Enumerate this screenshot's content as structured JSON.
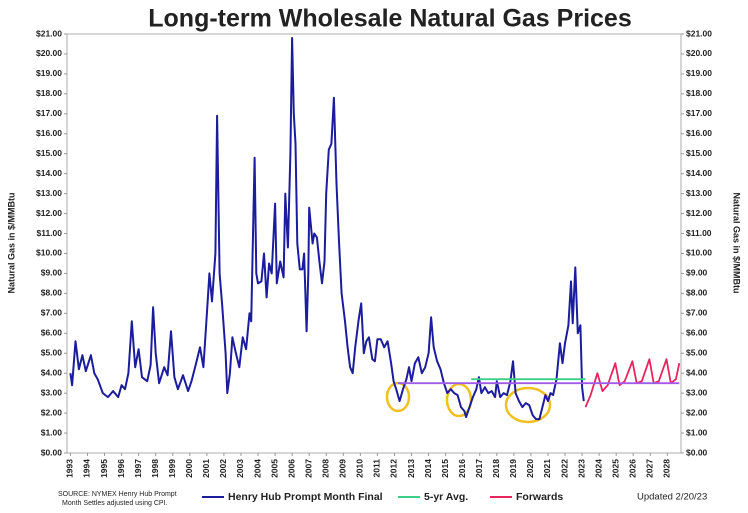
{
  "chart_data": {
    "type": "line",
    "title": "Long-term Wholesale Natural Gas Prices",
    "y_label": "Natural Gas in $/MMBtu",
    "y2_label": "Natural Gas in $/MMBtu",
    "source": [
      "SOURCE: NYMEX Henry Hub Prompt",
      "Month Settles adjusted using CPI."
    ],
    "updated": "Updated 2/20/23",
    "xlim": [
      1992.8,
      2028.8
    ],
    "xticks": [
      1993,
      1994,
      1995,
      1996,
      1997,
      1998,
      1999,
      2000,
      2001,
      2002,
      2003,
      2004,
      2005,
      2006,
      2007,
      2008,
      2009,
      2010,
      2011,
      2012,
      2013,
      2014,
      2015,
      2016,
      2017,
      2018,
      2019,
      2020,
      2021,
      2022,
      2023,
      2024,
      2025,
      2026,
      2027,
      2028
    ],
    "ylim": [
      0,
      21
    ],
    "yticks": [
      {
        "value": 0,
        "label": "$0.00"
      },
      {
        "value": 1,
        "label": "$1.00"
      },
      {
        "value": 2,
        "label": "$2.00"
      },
      {
        "value": 3,
        "label": "$3.00"
      },
      {
        "value": 4,
        "label": "$4.00"
      },
      {
        "value": 5,
        "label": "$5.00"
      },
      {
        "value": 6,
        "label": "$6.00"
      },
      {
        "value": 7,
        "label": "$7.00"
      },
      {
        "value": 8,
        "label": "$8.00"
      },
      {
        "value": 9,
        "label": "$9.00"
      },
      {
        "value": 10,
        "label": "$10.00"
      },
      {
        "value": 11,
        "label": "$11.00"
      },
      {
        "value": 12,
        "label": "$12.00"
      },
      {
        "value": 13,
        "label": "$13.00"
      },
      {
        "value": 14,
        "label": "$14.00"
      },
      {
        "value": 15,
        "label": "$15.00"
      },
      {
        "value": 16,
        "label": "$16.00"
      },
      {
        "value": 17,
        "label": "$17.00"
      },
      {
        "value": 18,
        "label": "$18.00"
      },
      {
        "value": 19,
        "label": "$19.00"
      },
      {
        "value": 20,
        "label": "$20.00"
      },
      {
        "value": 21,
        "label": "$21.00"
      }
    ],
    "y2lim": [
      0,
      21
    ],
    "y2ticks": [
      {
        "value": 0,
        "label": "$0.00"
      },
      {
        "value": 1,
        "label": "$1.00"
      },
      {
        "value": 2,
        "label": "$2.00"
      },
      {
        "value": 3,
        "label": "$3.00"
      },
      {
        "value": 4,
        "label": "$4.00"
      },
      {
        "value": 5,
        "label": "$5.00"
      },
      {
        "value": 6,
        "label": "$6.00"
      },
      {
        "value": 7,
        "label": "$7.00"
      },
      {
        "value": 8,
        "label": "$8.00"
      },
      {
        "value": 9,
        "label": "$9.00"
      },
      {
        "value": 10,
        "label": "$10.00"
      },
      {
        "value": 11,
        "label": "$11.00"
      },
      {
        "value": 12,
        "label": "$12.00"
      },
      {
        "value": 13,
        "label": "$13.00"
      },
      {
        "value": 14,
        "label": "$14.00"
      },
      {
        "value": 15,
        "label": "$15.00"
      },
      {
        "value": 16,
        "label": "$16.00"
      },
      {
        "value": 17,
        "label": "$17.00"
      },
      {
        "value": 18,
        "label": "$18.00"
      },
      {
        "value": 19,
        "label": "$19.00"
      },
      {
        "value": 20,
        "label": "$20.00"
      },
      {
        "value": 21,
        "label": "$21.00"
      }
    ],
    "series": [
      {
        "name": "Henry Hub Prompt Month Final",
        "color": "#1c1c9e",
        "x": [
          1993.0,
          1993.1,
          1993.3,
          1993.5,
          1993.7,
          1993.9,
          1994.2,
          1994.4,
          1994.6,
          1994.9,
          1995.2,
          1995.5,
          1995.8,
          1996.0,
          1996.2,
          1996.4,
          1996.6,
          1996.8,
          1997.0,
          1997.2,
          1997.5,
          1997.7,
          1997.85,
          1998.0,
          1998.2,
          1998.5,
          1998.7,
          1998.9,
          1999.1,
          1999.3,
          1999.6,
          1999.9,
          2000.1,
          2000.4,
          2000.6,
          2000.8,
          2001.0,
          2001.15,
          2001.3,
          2001.5,
          2001.6,
          2001.75,
          2001.9,
          2002.1,
          2002.2,
          2002.35,
          2002.5,
          2002.7,
          2002.9,
          2003.1,
          2003.3,
          2003.5,
          2003.6,
          2003.8,
          2003.9,
          2004.0,
          2004.2,
          2004.35,
          2004.5,
          2004.65,
          2004.8,
          2005.0,
          2005.1,
          2005.3,
          2005.5,
          2005.6,
          2005.75,
          2005.9,
          2006.0,
          2006.1,
          2006.2,
          2006.3,
          2006.45,
          2006.6,
          2006.7,
          2006.85,
          2006.95,
          2007.0,
          2007.2,
          2007.3,
          2007.45,
          2007.6,
          2007.75,
          2007.9,
          2008.0,
          2008.15,
          2008.3,
          2008.45,
          2008.6,
          2008.75,
          2008.9,
          2009.1,
          2009.25,
          2009.4,
          2009.55,
          2009.7,
          2009.9,
          2010.05,
          2010.2,
          2010.35,
          2010.5,
          2010.7,
          2010.85,
          2011.0,
          2011.2,
          2011.4,
          2011.6,
          2011.8,
          2011.95,
          2012.1,
          2012.3,
          2012.5,
          2012.7,
          2012.85,
          2013.0,
          2013.2,
          2013.4,
          2013.6,
          2013.8,
          2014.0,
          2014.15,
          2014.3,
          2014.5,
          2014.7,
          2014.9,
          2015.1,
          2015.3,
          2015.5,
          2015.7,
          2015.9,
          2016.1,
          2016.2,
          2016.4,
          2016.6,
          2016.8,
          2016.95,
          2017.1,
          2017.3,
          2017.5,
          2017.7,
          2017.9,
          2018.0,
          2018.2,
          2018.4,
          2018.6,
          2018.8,
          2018.95,
          2019.1,
          2019.3,
          2019.5,
          2019.7,
          2019.9,
          2020.1,
          2020.3,
          2020.5,
          2020.7,
          2020.85,
          2021.0,
          2021.15,
          2021.3,
          2021.5,
          2021.7,
          2021.85,
          2022.0,
          2022.2,
          2022.35,
          2022.45,
          2022.6,
          2022.75,
          2022.9,
          2023.0,
          2023.1
        ],
        "values": [
          4.0,
          3.4,
          5.6,
          4.2,
          4.9,
          4.1,
          4.9,
          4.0,
          3.7,
          3.0,
          2.8,
          3.1,
          2.8,
          3.4,
          3.2,
          4.0,
          6.6,
          4.3,
          5.2,
          3.8,
          3.6,
          4.4,
          7.3,
          5.0,
          3.5,
          4.3,
          3.9,
          6.1,
          3.8,
          3.2,
          3.9,
          3.1,
          3.6,
          4.6,
          5.3,
          4.3,
          7.0,
          9.0,
          7.6,
          10.0,
          16.9,
          9.0,
          7.4,
          5.0,
          3.0,
          4.0,
          5.8,
          5.0,
          4.3,
          5.8,
          5.2,
          7.0,
          6.6,
          14.8,
          9.0,
          8.5,
          8.6,
          10.0,
          7.8,
          9.5,
          9.0,
          12.5,
          8.5,
          9.6,
          8.8,
          13.0,
          10.3,
          15.0,
          20.8,
          17.0,
          15.5,
          10.5,
          9.2,
          9.2,
          10.0,
          6.1,
          9.0,
          12.3,
          10.5,
          11.0,
          10.8,
          9.6,
          8.5,
          9.6,
          13.0,
          15.2,
          15.5,
          17.8,
          13.5,
          10.6,
          8.0,
          6.6,
          5.3,
          4.3,
          4.0,
          5.3,
          6.7,
          7.5,
          5.0,
          5.6,
          5.8,
          4.7,
          4.6,
          5.7,
          5.7,
          5.3,
          5.6,
          4.5,
          3.6,
          3.2,
          2.6,
          3.2,
          3.7,
          4.3,
          3.6,
          4.5,
          4.8,
          4.0,
          4.3,
          5.0,
          6.8,
          5.3,
          4.6,
          4.2,
          3.5,
          3.0,
          3.2,
          3.0,
          2.9,
          2.3,
          2.1,
          1.8,
          2.3,
          2.8,
          3.2,
          3.8,
          3.0,
          3.3,
          3.0,
          3.1,
          2.8,
          3.6,
          2.8,
          3.0,
          2.9,
          3.6,
          4.6,
          3.0,
          2.6,
          2.3,
          2.5,
          2.4,
          1.9,
          1.7,
          1.7,
          2.4,
          2.9,
          2.6,
          3.0,
          2.9,
          3.7,
          5.5,
          4.5,
          5.5,
          6.4,
          8.6,
          6.5,
          9.3,
          6.0,
          6.4,
          3.3,
          2.6
        ]
      },
      {
        "name": "5-yr Avg.",
        "color": "#3ccf88",
        "x": [
          2016.5,
          2023.2
        ],
        "values": [
          3.7,
          3.7
        ]
      },
      {
        "name": "Forwards",
        "color": "#e8245e",
        "x": [
          2023.2,
          2023.5,
          2023.9,
          2024.2,
          2024.5,
          2024.95,
          2025.2,
          2025.5,
          2025.95,
          2026.2,
          2026.5,
          2026.95,
          2027.2,
          2027.5,
          2027.95,
          2028.2,
          2028.5,
          2028.7
        ],
        "values": [
          2.3,
          2.9,
          4.0,
          3.1,
          3.4,
          4.5,
          3.4,
          3.6,
          4.6,
          3.5,
          3.6,
          4.7,
          3.5,
          3.6,
          4.7,
          3.5,
          3.7,
          4.5
        ]
      },
      {
        "color": "#a05ce8",
        "x": [
          2012.2,
          2028.7
        ],
        "values": [
          3.5,
          3.5
        ]
      }
    ]
  }
}
